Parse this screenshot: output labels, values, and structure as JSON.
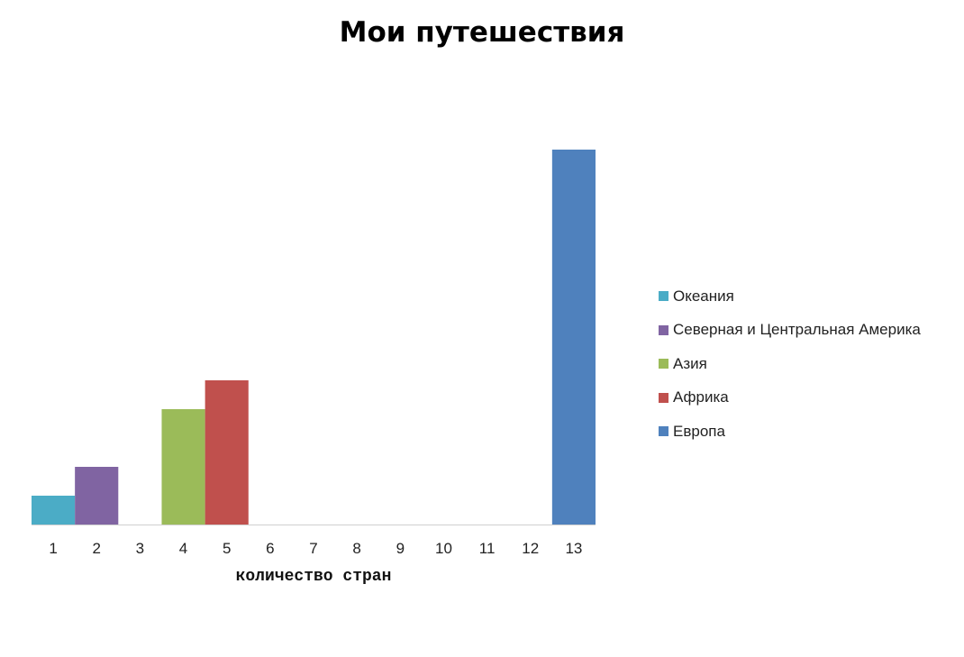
{
  "chart_data": {
    "type": "bar",
    "title": "Мои путешествия",
    "xlabel": "количество стран",
    "ylabel": "",
    "categories": [
      "1",
      "2",
      "3",
      "4",
      "5",
      "6",
      "7",
      "8",
      "9",
      "10",
      "11",
      "12",
      "13"
    ],
    "ylim": [
      0,
      13
    ],
    "grid": false,
    "legend_position": "right",
    "bars": [
      {
        "category": "1",
        "value": 1,
        "series": "Океания"
      },
      {
        "category": "2",
        "value": 2,
        "series": "Северная и Центральная Америка"
      },
      {
        "category": "4",
        "value": 4,
        "series": "Азия"
      },
      {
        "category": "5",
        "value": 5,
        "series": "Африка"
      },
      {
        "category": "13",
        "value": 13,
        "series": "Европа"
      }
    ],
    "series": [
      {
        "name": "Океания",
        "color": "#4BACC6"
      },
      {
        "name": "Северная и Центральная Америка",
        "color": "#8064A2"
      },
      {
        "name": "Азия",
        "color": "#9BBB59"
      },
      {
        "name": "Африка",
        "color": "#C0504D"
      },
      {
        "name": "Европа",
        "color": "#4F81BD"
      }
    ]
  }
}
